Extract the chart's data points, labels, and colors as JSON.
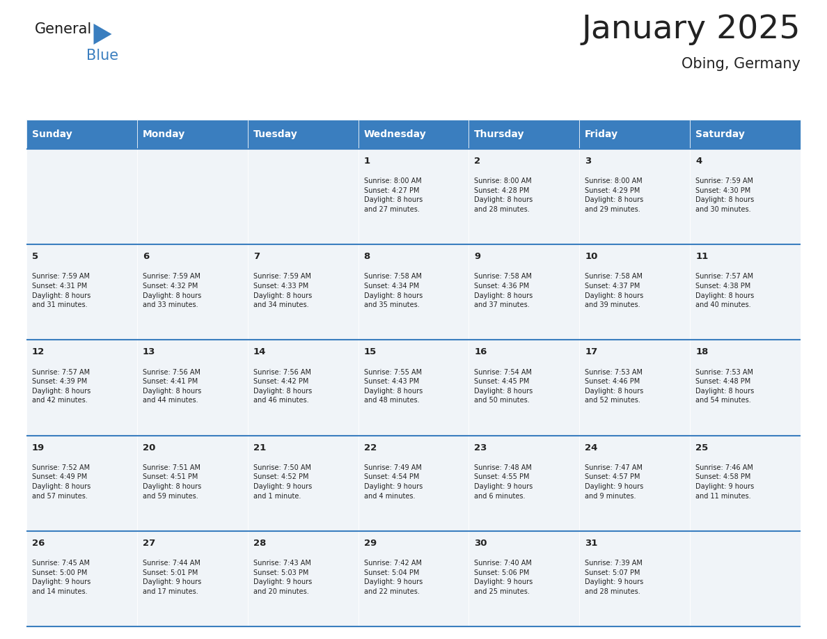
{
  "title": "January 2025",
  "subtitle": "Obing, Germany",
  "header_color": "#3a7ebf",
  "header_text_color": "#ffffff",
  "cell_bg_color": "#f0f4f8",
  "border_color": "#3a7ebf",
  "text_color": "#222222",
  "days_of_week": [
    "Sunday",
    "Monday",
    "Tuesday",
    "Wednesday",
    "Thursday",
    "Friday",
    "Saturday"
  ],
  "weeks": [
    [
      {
        "day": null,
        "info": null
      },
      {
        "day": null,
        "info": null
      },
      {
        "day": null,
        "info": null
      },
      {
        "day": 1,
        "info": "Sunrise: 8:00 AM\nSunset: 4:27 PM\nDaylight: 8 hours\nand 27 minutes."
      },
      {
        "day": 2,
        "info": "Sunrise: 8:00 AM\nSunset: 4:28 PM\nDaylight: 8 hours\nand 28 minutes."
      },
      {
        "day": 3,
        "info": "Sunrise: 8:00 AM\nSunset: 4:29 PM\nDaylight: 8 hours\nand 29 minutes."
      },
      {
        "day": 4,
        "info": "Sunrise: 7:59 AM\nSunset: 4:30 PM\nDaylight: 8 hours\nand 30 minutes."
      }
    ],
    [
      {
        "day": 5,
        "info": "Sunrise: 7:59 AM\nSunset: 4:31 PM\nDaylight: 8 hours\nand 31 minutes."
      },
      {
        "day": 6,
        "info": "Sunrise: 7:59 AM\nSunset: 4:32 PM\nDaylight: 8 hours\nand 33 minutes."
      },
      {
        "day": 7,
        "info": "Sunrise: 7:59 AM\nSunset: 4:33 PM\nDaylight: 8 hours\nand 34 minutes."
      },
      {
        "day": 8,
        "info": "Sunrise: 7:58 AM\nSunset: 4:34 PM\nDaylight: 8 hours\nand 35 minutes."
      },
      {
        "day": 9,
        "info": "Sunrise: 7:58 AM\nSunset: 4:36 PM\nDaylight: 8 hours\nand 37 minutes."
      },
      {
        "day": 10,
        "info": "Sunrise: 7:58 AM\nSunset: 4:37 PM\nDaylight: 8 hours\nand 39 minutes."
      },
      {
        "day": 11,
        "info": "Sunrise: 7:57 AM\nSunset: 4:38 PM\nDaylight: 8 hours\nand 40 minutes."
      }
    ],
    [
      {
        "day": 12,
        "info": "Sunrise: 7:57 AM\nSunset: 4:39 PM\nDaylight: 8 hours\nand 42 minutes."
      },
      {
        "day": 13,
        "info": "Sunrise: 7:56 AM\nSunset: 4:41 PM\nDaylight: 8 hours\nand 44 minutes."
      },
      {
        "day": 14,
        "info": "Sunrise: 7:56 AM\nSunset: 4:42 PM\nDaylight: 8 hours\nand 46 minutes."
      },
      {
        "day": 15,
        "info": "Sunrise: 7:55 AM\nSunset: 4:43 PM\nDaylight: 8 hours\nand 48 minutes."
      },
      {
        "day": 16,
        "info": "Sunrise: 7:54 AM\nSunset: 4:45 PM\nDaylight: 8 hours\nand 50 minutes."
      },
      {
        "day": 17,
        "info": "Sunrise: 7:53 AM\nSunset: 4:46 PM\nDaylight: 8 hours\nand 52 minutes."
      },
      {
        "day": 18,
        "info": "Sunrise: 7:53 AM\nSunset: 4:48 PM\nDaylight: 8 hours\nand 54 minutes."
      }
    ],
    [
      {
        "day": 19,
        "info": "Sunrise: 7:52 AM\nSunset: 4:49 PM\nDaylight: 8 hours\nand 57 minutes."
      },
      {
        "day": 20,
        "info": "Sunrise: 7:51 AM\nSunset: 4:51 PM\nDaylight: 8 hours\nand 59 minutes."
      },
      {
        "day": 21,
        "info": "Sunrise: 7:50 AM\nSunset: 4:52 PM\nDaylight: 9 hours\nand 1 minute."
      },
      {
        "day": 22,
        "info": "Sunrise: 7:49 AM\nSunset: 4:54 PM\nDaylight: 9 hours\nand 4 minutes."
      },
      {
        "day": 23,
        "info": "Sunrise: 7:48 AM\nSunset: 4:55 PM\nDaylight: 9 hours\nand 6 minutes."
      },
      {
        "day": 24,
        "info": "Sunrise: 7:47 AM\nSunset: 4:57 PM\nDaylight: 9 hours\nand 9 minutes."
      },
      {
        "day": 25,
        "info": "Sunrise: 7:46 AM\nSunset: 4:58 PM\nDaylight: 9 hours\nand 11 minutes."
      }
    ],
    [
      {
        "day": 26,
        "info": "Sunrise: 7:45 AM\nSunset: 5:00 PM\nDaylight: 9 hours\nand 14 minutes."
      },
      {
        "day": 27,
        "info": "Sunrise: 7:44 AM\nSunset: 5:01 PM\nDaylight: 9 hours\nand 17 minutes."
      },
      {
        "day": 28,
        "info": "Sunrise: 7:43 AM\nSunset: 5:03 PM\nDaylight: 9 hours\nand 20 minutes."
      },
      {
        "day": 29,
        "info": "Sunrise: 7:42 AM\nSunset: 5:04 PM\nDaylight: 9 hours\nand 22 minutes."
      },
      {
        "day": 30,
        "info": "Sunrise: 7:40 AM\nSunset: 5:06 PM\nDaylight: 9 hours\nand 25 minutes."
      },
      {
        "day": 31,
        "info": "Sunrise: 7:39 AM\nSunset: 5:07 PM\nDaylight: 9 hours\nand 28 minutes."
      },
      {
        "day": null,
        "info": null
      }
    ]
  ],
  "logo_general_color": "#1a1a1a",
  "logo_blue_color": "#3a7ebf",
  "logo_triangle_color": "#3a7ebf",
  "fig_width": 11.88,
  "fig_height": 9.18,
  "dpi": 100
}
